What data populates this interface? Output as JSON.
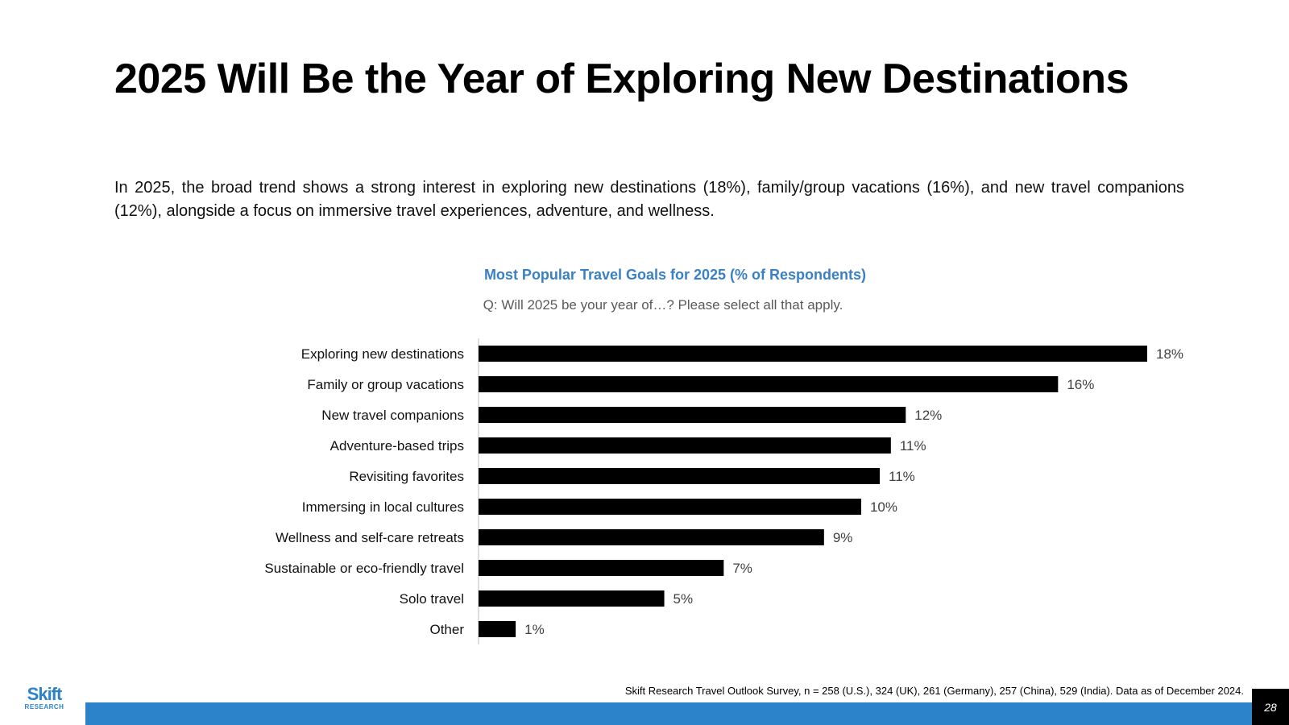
{
  "slide": {
    "title": "2025 Will Be the Year of Exploring New Destinations",
    "intro": "In 2025, the broad trend shows a strong interest in exploring new destinations (18%), family/group vacations (16%), and new travel companions (12%), alongside a focus on immersive travel experiences, adventure, and wellness.",
    "source": "Skift Research Travel Outlook Survey, n = 258 (U.S.), 324 (UK), 261 (Germany), 257 (China), 529 (India). Data as of December  2024.",
    "page_number": "28",
    "logo": {
      "word": "Skift",
      "sub": "RESEARCH"
    },
    "colors": {
      "accent": "#3a80c4",
      "footer_bar": "#2d83c9",
      "bar": "#000000"
    }
  },
  "chart_data": {
    "type": "bar",
    "orientation": "horizontal",
    "title": "Most Popular Travel Goals for 2025 (% of Respondents)",
    "subtitle": "Q: Will 2025 be your year of…? Please select all that apply.",
    "categories": [
      "Exploring new destinations",
      "Family or group vacations",
      "New travel companions",
      "Adventure-based trips",
      "Revisiting favorites",
      "Immersing in local cultures",
      "Wellness and self-care retreats",
      "Sustainable or eco-friendly travel",
      "Solo travel",
      "Other"
    ],
    "values": [
      18,
      16,
      12,
      11,
      11,
      10,
      9,
      7,
      5,
      1
    ],
    "plotted_values": [
      18,
      15.6,
      11.5,
      11.1,
      10.8,
      10.3,
      9.3,
      6.6,
      5.0,
      1.0
    ],
    "data_labels": [
      "18%",
      "16%",
      "12%",
      "11%",
      "11%",
      "10%",
      "9%",
      "7%",
      "5%",
      "1%"
    ],
    "xlim": [
      0,
      18
    ],
    "grid": false,
    "legend": "none"
  }
}
